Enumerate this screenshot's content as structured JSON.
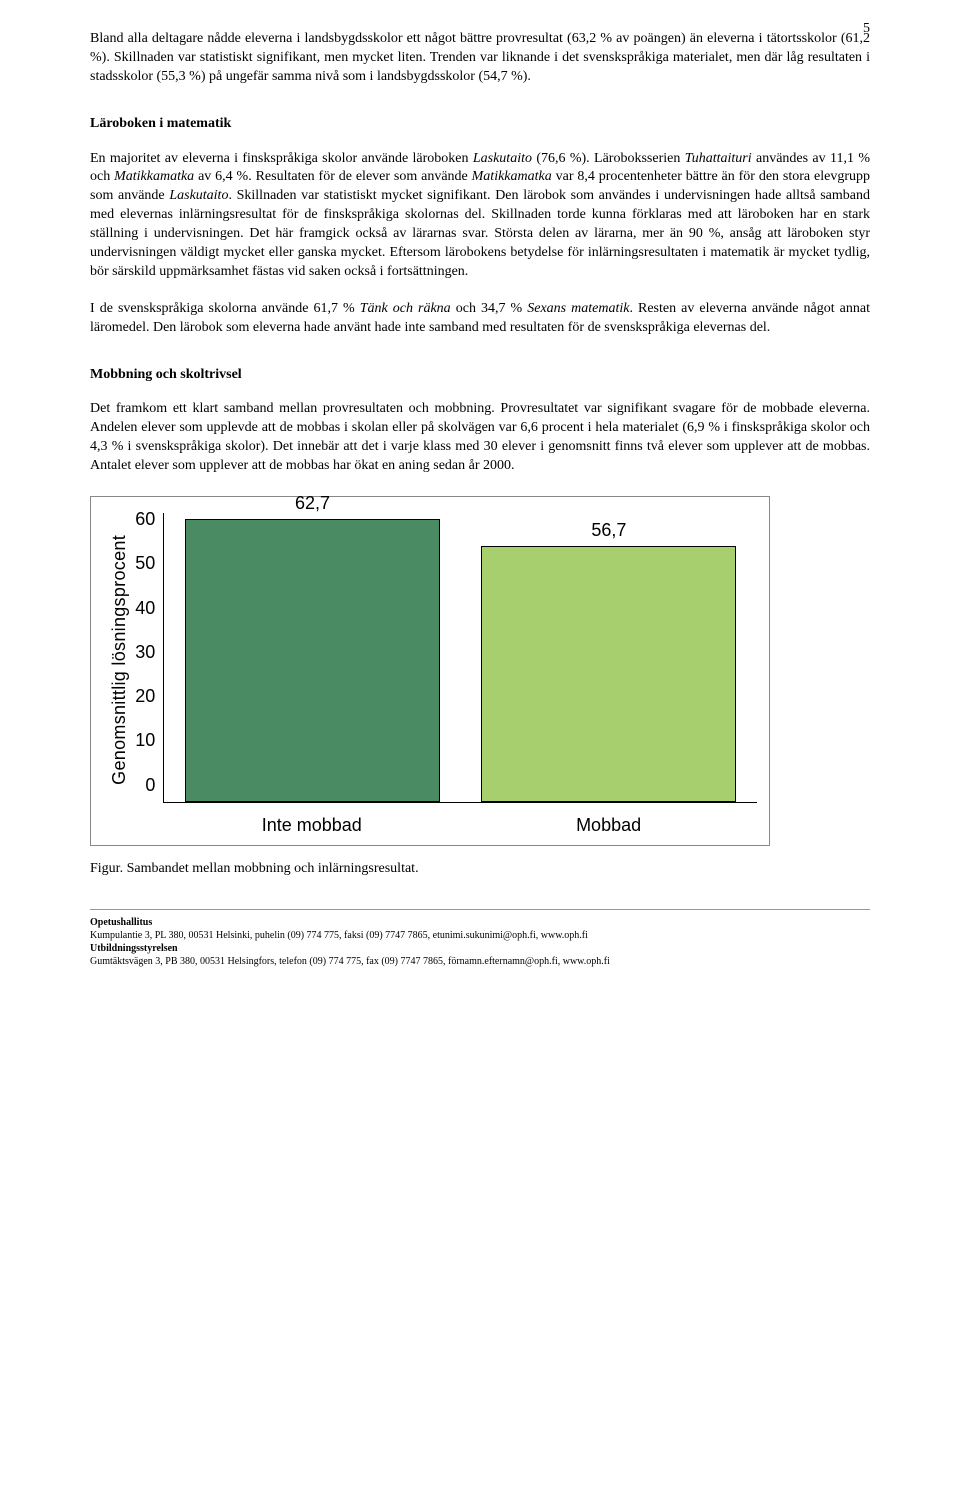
{
  "page_number": "5",
  "paragraphs": {
    "p1": "Bland alla deltagare nådde eleverna i landsbygdsskolor ett något bättre provresultat (63,2 % av poängen) än eleverna i tätortsskolor (61,2 %). Skillnaden var statistiskt signifikant, men mycket liten. Trenden var liknande i det svenskspråkiga materialet, men där låg resultaten i stadsskolor (55,3 %) på ungefär samma nivå som i landsbygdsskolor (54,7 %).",
    "p2_part1": "En majoritet av eleverna i finskspråkiga skolor använde läroboken ",
    "p2_italic1": "Laskutaito",
    "p2_part2": " (76,6 %). Läroboksserien ",
    "p2_italic2": "Tuhattaituri",
    "p2_part3": " användes av 11,1 % och ",
    "p2_italic3": "Matikkamatka",
    "p2_part4": " av 6,4 %. Resultaten för de elever som använde ",
    "p2_italic4": "Matikkamatka",
    "p2_part5": " var 8,4 procentenheter bättre än för den stora elevgrupp som använde ",
    "p2_italic5": "Laskutaito",
    "p2_part6": ". Skillnaden var statistiskt mycket signifikant. Den lärobok som användes i undervisningen hade alltså samband med elevernas inlärningsresultat för de finskspråkiga skolornas del. Skillnaden torde kunna förklaras med att läroboken har en stark ställning i undervisningen. Det här framgick också av lärarnas svar. Största delen av lärarna, mer än 90 %, ansåg att läroboken styr undervisningen väldigt mycket eller ganska mycket. Eftersom lärobokens betydelse för inlärningsresultaten i matematik är mycket tydlig, bör särskild uppmärksamhet fästas vid saken också i fortsättningen.",
    "p3_part1": "I de svenskspråkiga skolorna använde 61,7 % ",
    "p3_italic1": "Tänk och räkna",
    "p3_part2": " och 34,7 % ",
    "p3_italic2": "Sexans matematik",
    "p3_part3": ". Resten av eleverna använde något annat läromedel. Den lärobok som eleverna hade använt hade inte samband med resultaten för de svenskspråkiga elevernas del.",
    "p4": "Det framkom ett klart samband mellan provresultaten och mobbning. Provresultatet var signifikant svagare för de mobbade eleverna. Andelen elever som upplevde att de mobbas i skolan eller på skolvägen var 6,6 procent i hela materialet (6,9 % i finskspråkiga skolor och 4,3 % i svenskspråkiga skolor). Det innebär att det i varje klass med 30 elever i genomsnitt finns två elever som upplever att de mobbas. Antalet elever som upplever att de mobbas har ökat en aning sedan år 2000."
  },
  "headings": {
    "h1": "Läroboken i matematik",
    "h2": "Mobbning och skoltrivsel"
  },
  "chart": {
    "type": "bar",
    "y_label": "Genomsnittlig lösningsprocent",
    "y_ticks": [
      "60",
      "50",
      "40",
      "30",
      "20",
      "10",
      "0"
    ],
    "y_max": 64,
    "bars": [
      {
        "label": "Inte mobbad",
        "value": 62.7,
        "value_label": "62,7",
        "color": "#4a8b63",
        "border": "#000"
      },
      {
        "label": "Mobbad",
        "value": 56.7,
        "value_label": "56,7",
        "color": "#a7cf6e",
        "border": "#000"
      }
    ],
    "background_color": "#ffffff"
  },
  "caption": "Figur. Sambandet mellan mobbning och inlärningsresultat.",
  "footer": {
    "line1_bold": "Opetushallitus",
    "line1": "Kumpulantie 3, PL 380, 00531 Helsinki, puhelin (09) 774 775, faksi (09) 7747 7865, etunimi.sukunimi@oph.fi, www.oph.fi",
    "line2_bold": "Utbildningsstyrelsen",
    "line2": "Gumtäktsvägen 3, PB 380, 00531 Helsingfors, telefon (09) 774 775, fax (09) 7747 7865, förnamn.efternamn@oph.fi, www.oph.fi"
  }
}
